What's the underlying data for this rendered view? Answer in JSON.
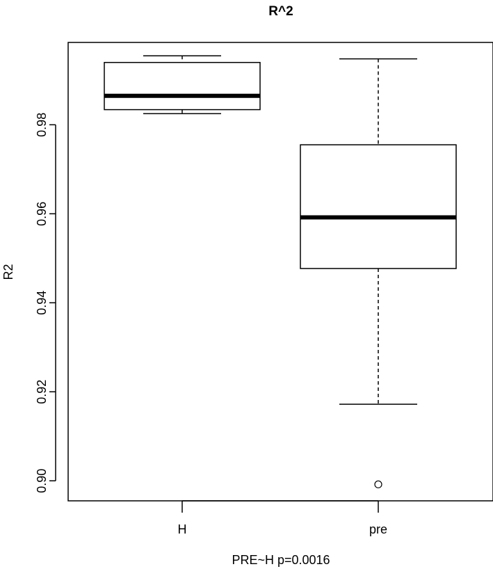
{
  "chart_data": {
    "type": "box",
    "title": "R^2",
    "xlabel": "PRE~H p=0.0016",
    "ylabel": "R2",
    "ylim": [
      0.8955,
      0.9985
    ],
    "yticks": [
      0.9,
      0.92,
      0.94,
      0.96,
      0.98
    ],
    "ytick_labels": [
      "0.90",
      "0.92",
      "0.94",
      "0.96",
      "0.98"
    ],
    "categories": [
      "H",
      "pre"
    ],
    "boxes": [
      {
        "category": "H",
        "whisker_low": 0.9825,
        "q1": 0.9834,
        "median": 0.9865,
        "q3": 0.994,
        "whisker_high": 0.9955,
        "outliers": []
      },
      {
        "category": "pre",
        "whisker_low": 0.9172,
        "q1": 0.9477,
        "median": 0.9592,
        "q3": 0.9755,
        "whisker_high": 0.9948,
        "outliers": [
          0.8992
        ]
      }
    ],
    "grid": false,
    "legend": "none"
  }
}
